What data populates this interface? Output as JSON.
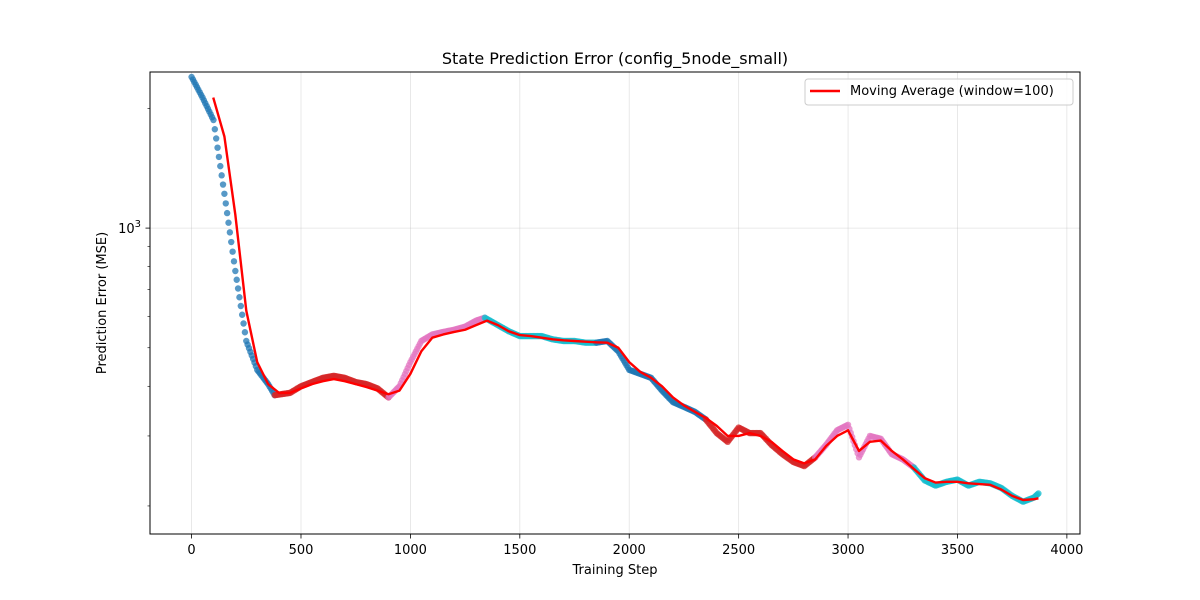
{
  "chart_data": {
    "type": "scatter",
    "title": "State Prediction Error (config_5node_small)",
    "xlabel": "Training Step",
    "ylabel": "Prediction Error (MSE)",
    "xlim": [
      -190,
      4060
    ],
    "ylim": [
      170,
      2470
    ],
    "yscale": "log",
    "grid": true,
    "legend_position": "top-right",
    "x_ticks": [
      0,
      500,
      1000,
      1500,
      2000,
      2500,
      3000,
      3500,
      4000
    ],
    "y_major_ticks": [
      1000
    ],
    "y_major_tick_labels": [
      "10^3"
    ],
    "y_minor_ticks": [
      200,
      300,
      400,
      500,
      600,
      700,
      800,
      900,
      2000
    ],
    "scatter_series": [
      {
        "color": "#1f77b4",
        "points": [
          [
            0,
            2400
          ],
          [
            50,
            2130
          ],
          [
            100,
            1870
          ],
          [
            150,
            1220
          ],
          [
            200,
            780
          ],
          [
            250,
            520
          ],
          [
            300,
            440
          ],
          [
            350,
            405
          ],
          [
            380,
            380
          ]
        ]
      },
      {
        "color": "#d62728",
        "points": [
          [
            380,
            380
          ],
          [
            450,
            385
          ],
          [
            500,
            400
          ],
          [
            550,
            410
          ],
          [
            600,
            420
          ],
          [
            650,
            425
          ],
          [
            700,
            420
          ],
          [
            750,
            410
          ],
          [
            800,
            405
          ],
          [
            850,
            395
          ],
          [
            900,
            375
          ]
        ]
      },
      {
        "color": "#e377c2",
        "points": [
          [
            900,
            375
          ],
          [
            950,
            400
          ],
          [
            1000,
            460
          ],
          [
            1050,
            520
          ],
          [
            1100,
            540
          ],
          [
            1150,
            548
          ],
          [
            1200,
            555
          ],
          [
            1250,
            565
          ],
          [
            1300,
            585
          ],
          [
            1340,
            595
          ]
        ]
      },
      {
        "color": "#17becf",
        "points": [
          [
            1340,
            595
          ],
          [
            1400,
            570
          ],
          [
            1450,
            550
          ],
          [
            1500,
            535
          ],
          [
            1550,
            535
          ],
          [
            1600,
            535
          ],
          [
            1650,
            525
          ],
          [
            1700,
            520
          ],
          [
            1750,
            520
          ],
          [
            1800,
            515
          ],
          [
            1850,
            515
          ]
        ]
      },
      {
        "color": "#1f77b4",
        "points": [
          [
            1850,
            515
          ],
          [
            1900,
            520
          ],
          [
            1950,
            490
          ],
          [
            2000,
            440
          ],
          [
            2050,
            430
          ],
          [
            2100,
            420
          ],
          [
            2150,
            390
          ],
          [
            2200,
            365
          ],
          [
            2250,
            355
          ],
          [
            2300,
            345
          ],
          [
            2350,
            330
          ]
        ]
      },
      {
        "color": "#d62728",
        "points": [
          [
            2350,
            330
          ],
          [
            2400,
            305
          ],
          [
            2450,
            290
          ],
          [
            2500,
            315
          ],
          [
            2550,
            305
          ],
          [
            2600,
            305
          ],
          [
            2650,
            285
          ],
          [
            2700,
            270
          ],
          [
            2750,
            258
          ],
          [
            2800,
            252
          ],
          [
            2850,
            265
          ]
        ]
      },
      {
        "color": "#e377c2",
        "points": [
          [
            2850,
            265
          ],
          [
            2900,
            285
          ],
          [
            2950,
            310
          ],
          [
            3000,
            320
          ],
          [
            3050,
            265
          ],
          [
            3100,
            300
          ],
          [
            3150,
            295
          ],
          [
            3200,
            270
          ],
          [
            3250,
            262
          ],
          [
            3300,
            250
          ]
        ]
      },
      {
        "color": "#17becf",
        "points": [
          [
            3300,
            250
          ],
          [
            3350,
            232
          ],
          [
            3400,
            225
          ],
          [
            3450,
            230
          ],
          [
            3500,
            233
          ],
          [
            3550,
            225
          ],
          [
            3600,
            230
          ],
          [
            3650,
            228
          ],
          [
            3700,
            222
          ],
          [
            3750,
            212
          ],
          [
            3800,
            205
          ],
          [
            3850,
            210
          ],
          [
            3870,
            215
          ]
        ]
      }
    ],
    "moving_average": {
      "name": "Moving Average (window=100)",
      "color": "#ff0000",
      "points": [
        [
          99,
          2130
        ],
        [
          150,
          1700
        ],
        [
          200,
          1080
        ],
        [
          250,
          620
        ],
        [
          300,
          460
        ],
        [
          350,
          405
        ],
        [
          400,
          385
        ],
        [
          450,
          385
        ],
        [
          500,
          395
        ],
        [
          550,
          405
        ],
        [
          600,
          412
        ],
        [
          650,
          417
        ],
        [
          700,
          412
        ],
        [
          750,
          405
        ],
        [
          800,
          398
        ],
        [
          850,
          390
        ],
        [
          900,
          382
        ],
        [
          950,
          390
        ],
        [
          1000,
          430
        ],
        [
          1050,
          490
        ],
        [
          1100,
          530
        ],
        [
          1150,
          540
        ],
        [
          1200,
          548
        ],
        [
          1250,
          555
        ],
        [
          1300,
          570
        ],
        [
          1350,
          585
        ],
        [
          1400,
          570
        ],
        [
          1450,
          550
        ],
        [
          1500,
          538
        ],
        [
          1550,
          535
        ],
        [
          1600,
          530
        ],
        [
          1650,
          525
        ],
        [
          1700,
          522
        ],
        [
          1750,
          520
        ],
        [
          1800,
          518
        ],
        [
          1850,
          516
        ],
        [
          1900,
          515
        ],
        [
          1950,
          500
        ],
        [
          2000,
          460
        ],
        [
          2050,
          435
        ],
        [
          2100,
          420
        ],
        [
          2150,
          400
        ],
        [
          2200,
          375
        ],
        [
          2250,
          358
        ],
        [
          2300,
          345
        ],
        [
          2350,
          333
        ],
        [
          2400,
          318
        ],
        [
          2450,
          300
        ],
        [
          2500,
          300
        ],
        [
          2550,
          305
        ],
        [
          2600,
          300
        ],
        [
          2650,
          290
        ],
        [
          2700,
          275
        ],
        [
          2750,
          262
        ],
        [
          2800,
          256
        ],
        [
          2850,
          262
        ],
        [
          2900,
          283
        ],
        [
          2950,
          300
        ],
        [
          3000,
          310
        ],
        [
          3050,
          275
        ],
        [
          3100,
          290
        ],
        [
          3150,
          292
        ],
        [
          3200,
          275
        ],
        [
          3250,
          262
        ],
        [
          3300,
          248
        ],
        [
          3350,
          235
        ],
        [
          3400,
          229
        ],
        [
          3450,
          230
        ],
        [
          3500,
          230
        ],
        [
          3550,
          228
        ],
        [
          3600,
          227
        ],
        [
          3650,
          226
        ],
        [
          3700,
          220
        ],
        [
          3750,
          212
        ],
        [
          3800,
          207
        ],
        [
          3850,
          208
        ],
        [
          3870,
          209
        ]
      ]
    }
  }
}
